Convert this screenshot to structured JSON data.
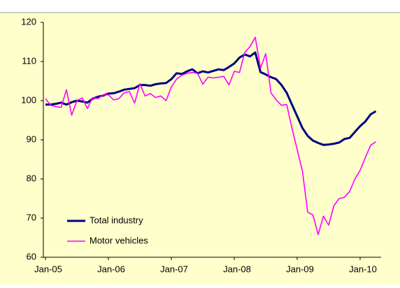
{
  "chart_data": {
    "type": "line",
    "categories": [
      "Jan-05",
      null,
      null,
      null,
      null,
      null,
      null,
      null,
      null,
      null,
      null,
      null,
      "Jan-06",
      null,
      null,
      null,
      null,
      null,
      null,
      null,
      null,
      null,
      null,
      null,
      "Jan-07",
      null,
      null,
      null,
      null,
      null,
      null,
      null,
      null,
      null,
      null,
      null,
      "Jan-08",
      null,
      null,
      null,
      null,
      null,
      null,
      null,
      null,
      null,
      null,
      null,
      "Jan-09",
      null,
      null,
      null,
      null,
      null,
      null,
      null,
      null,
      null,
      null,
      null,
      "Jan-10",
      null,
      null,
      null
    ],
    "series": [
      {
        "name": "Total industry",
        "color": "#000080",
        "values": [
          99,
          99,
          99.2,
          99.5,
          99,
          99.6,
          100,
          99.8,
          99.5,
          100.5,
          101,
          101.3,
          101.8,
          101.9,
          102.3,
          102.8,
          103,
          103.2,
          104,
          104,
          103.8,
          104.2,
          104.4,
          104.5,
          105.5,
          107,
          106.8,
          107.5,
          108,
          107,
          107.5,
          107.2,
          107.6,
          108,
          107.8,
          108.6,
          109.5,
          111,
          111.8,
          111.3,
          112.3,
          107.3,
          106.7,
          106,
          105.5,
          104,
          102,
          99,
          96,
          93,
          91,
          89.8,
          89.2,
          88.7,
          88.8,
          89,
          89.3,
          90.2,
          90.5,
          92,
          93.5,
          94.7,
          96.5,
          97.3
        ]
      },
      {
        "name": "Motor vehicles",
        "color": "#ff00ff",
        "values": [
          100.5,
          98.8,
          98.5,
          98.3,
          102.8,
          96.3,
          100,
          100.7,
          98,
          100.8,
          100.5,
          101.5,
          101.5,
          100.2,
          100.5,
          102,
          102.3,
          99.4,
          104.3,
          101.2,
          101.8,
          100.8,
          101.2,
          100,
          103.5,
          105.5,
          106.5,
          107,
          107.2,
          107,
          104.2,
          106,
          105.8,
          106,
          106.2,
          104,
          107.5,
          107.2,
          112.3,
          113.8,
          116.2,
          108.3,
          112,
          102,
          100.2,
          98.8,
          99,
          93,
          87.5,
          82,
          71.5,
          70.8,
          65.8,
          70.5,
          68.2,
          73.2,
          75,
          75.3,
          76.8,
          80,
          82.2,
          85.5,
          88.6,
          89.5
        ]
      }
    ],
    "ylim": [
      60,
      120
    ],
    "yticks": [
      60,
      70,
      80,
      90,
      100,
      110,
      120
    ],
    "legend": "lower-left"
  }
}
